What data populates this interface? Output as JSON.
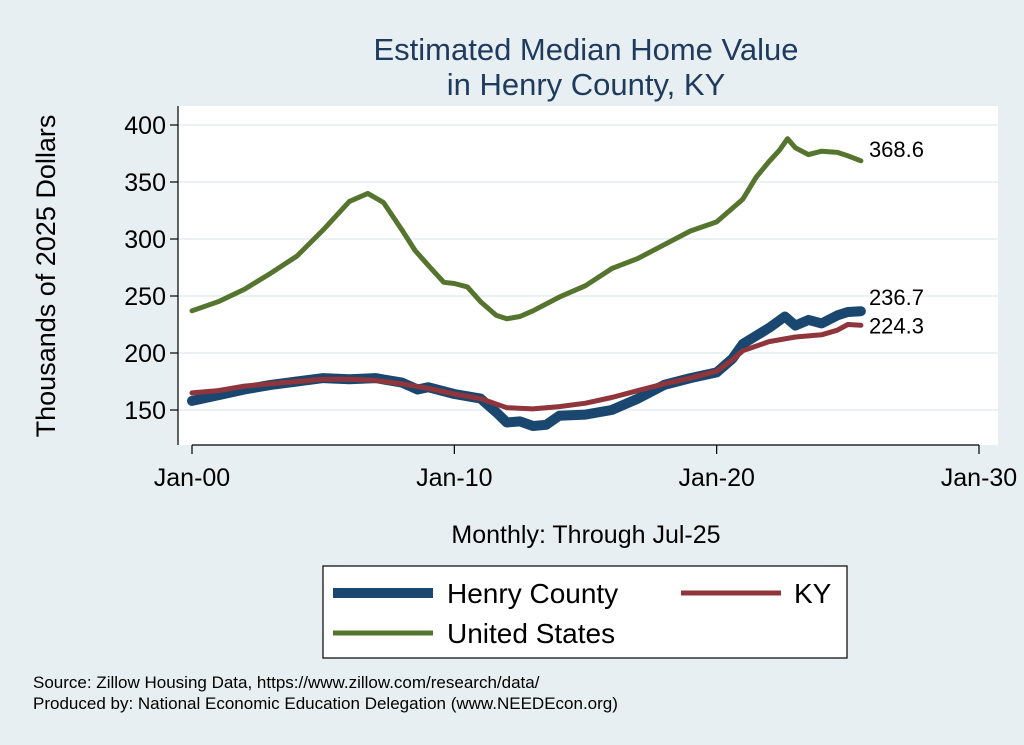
{
  "source_lines": [
    "Source: Zillow Housing Data, https://www.zillow.com/research/data/",
    "Produced by: National Economic Education Delegation (www.NEEDEcon.org)"
  ],
  "chart_data": {
    "type": "line",
    "title": [
      "Estimated Median Home Value",
      "in Henry County, KY"
    ],
    "xlabel": "Monthly: Through Jul-25",
    "ylabel": "Thousands of 2025 Dollars",
    "xlim": [
      2000,
      2030
    ],
    "ylim": [
      130,
      410
    ],
    "x_ticks": [
      {
        "value": 2000,
        "label": "Jan-00"
      },
      {
        "value": 2010,
        "label": "Jan-10"
      },
      {
        "value": 2020,
        "label": "Jan-20"
      },
      {
        "value": 2030,
        "label": "Jan-30"
      }
    ],
    "y_ticks": [
      150,
      200,
      250,
      300,
      350,
      400
    ],
    "grid": true,
    "legend_position": "bottom",
    "series": [
      {
        "name": "Henry County",
        "color": "#1a476f",
        "end_label": "236.7",
        "points": [
          [
            2000,
            158
          ],
          [
            2001,
            163
          ],
          [
            2002,
            168
          ],
          [
            2003,
            172
          ],
          [
            2004,
            175
          ],
          [
            2005,
            178
          ],
          [
            2006,
            177
          ],
          [
            2007,
            178
          ],
          [
            2008,
            174
          ],
          [
            2008.6,
            168
          ],
          [
            2009,
            170
          ],
          [
            2010,
            164
          ],
          [
            2011,
            160
          ],
          [
            2011.6,
            148
          ],
          [
            2012,
            139
          ],
          [
            2012.5,
            140
          ],
          [
            2013,
            136
          ],
          [
            2013.5,
            137
          ],
          [
            2014,
            145
          ],
          [
            2015,
            146
          ],
          [
            2016,
            150
          ],
          [
            2017,
            160
          ],
          [
            2018,
            172
          ],
          [
            2019,
            178
          ],
          [
            2020,
            183
          ],
          [
            2020.6,
            195
          ],
          [
            2021,
            208
          ],
          [
            2021.5,
            215
          ],
          [
            2022,
            222
          ],
          [
            2022.6,
            232
          ],
          [
            2023,
            224
          ],
          [
            2023.5,
            229
          ],
          [
            2024,
            226
          ],
          [
            2024.6,
            233
          ],
          [
            2025,
            236
          ],
          [
            2025.5,
            236.7
          ]
        ]
      },
      {
        "name": "KY",
        "color": "#90353b",
        "end_label": "224.3",
        "points": [
          [
            2000,
            165
          ],
          [
            2001,
            167
          ],
          [
            2002,
            171
          ],
          [
            2003,
            173
          ],
          [
            2004,
            175
          ],
          [
            2005,
            177
          ],
          [
            2006,
            177
          ],
          [
            2007,
            176
          ],
          [
            2008,
            173
          ],
          [
            2009,
            169
          ],
          [
            2010,
            164
          ],
          [
            2011,
            160
          ],
          [
            2012,
            152
          ],
          [
            2013,
            151
          ],
          [
            2014,
            153
          ],
          [
            2015,
            156
          ],
          [
            2016,
            161
          ],
          [
            2017,
            167
          ],
          [
            2018,
            173
          ],
          [
            2019,
            178
          ],
          [
            2020,
            184
          ],
          [
            2020.6,
            194
          ],
          [
            2021,
            202
          ],
          [
            2022,
            210
          ],
          [
            2023,
            214
          ],
          [
            2024,
            216
          ],
          [
            2024.6,
            220
          ],
          [
            2025,
            225
          ],
          [
            2025.5,
            224.3
          ]
        ]
      },
      {
        "name": "United States",
        "color": "#55752f",
        "end_label": "368.6",
        "points": [
          [
            2000,
            237
          ],
          [
            2001,
            245
          ],
          [
            2002,
            256
          ],
          [
            2003,
            270
          ],
          [
            2004,
            285
          ],
          [
            2005,
            308
          ],
          [
            2006,
            333
          ],
          [
            2006.7,
            340
          ],
          [
            2007.3,
            332
          ],
          [
            2008,
            308
          ],
          [
            2008.5,
            290
          ],
          [
            2009,
            277
          ],
          [
            2009.6,
            262
          ],
          [
            2010,
            261
          ],
          [
            2010.5,
            258
          ],
          [
            2011,
            245
          ],
          [
            2011.6,
            233
          ],
          [
            2012,
            230
          ],
          [
            2012.5,
            232
          ],
          [
            2013,
            237
          ],
          [
            2014,
            249
          ],
          [
            2015,
            259
          ],
          [
            2016,
            274
          ],
          [
            2017,
            283
          ],
          [
            2018,
            295
          ],
          [
            2019,
            307
          ],
          [
            2020,
            315
          ],
          [
            2020.5,
            325
          ],
          [
            2021,
            335
          ],
          [
            2021.5,
            354
          ],
          [
            2022,
            368
          ],
          [
            2022.4,
            378
          ],
          [
            2022.7,
            388
          ],
          [
            2023,
            380
          ],
          [
            2023.5,
            374
          ],
          [
            2024,
            377
          ],
          [
            2024.6,
            376
          ],
          [
            2025,
            373
          ],
          [
            2025.5,
            368.6
          ]
        ]
      }
    ]
  }
}
